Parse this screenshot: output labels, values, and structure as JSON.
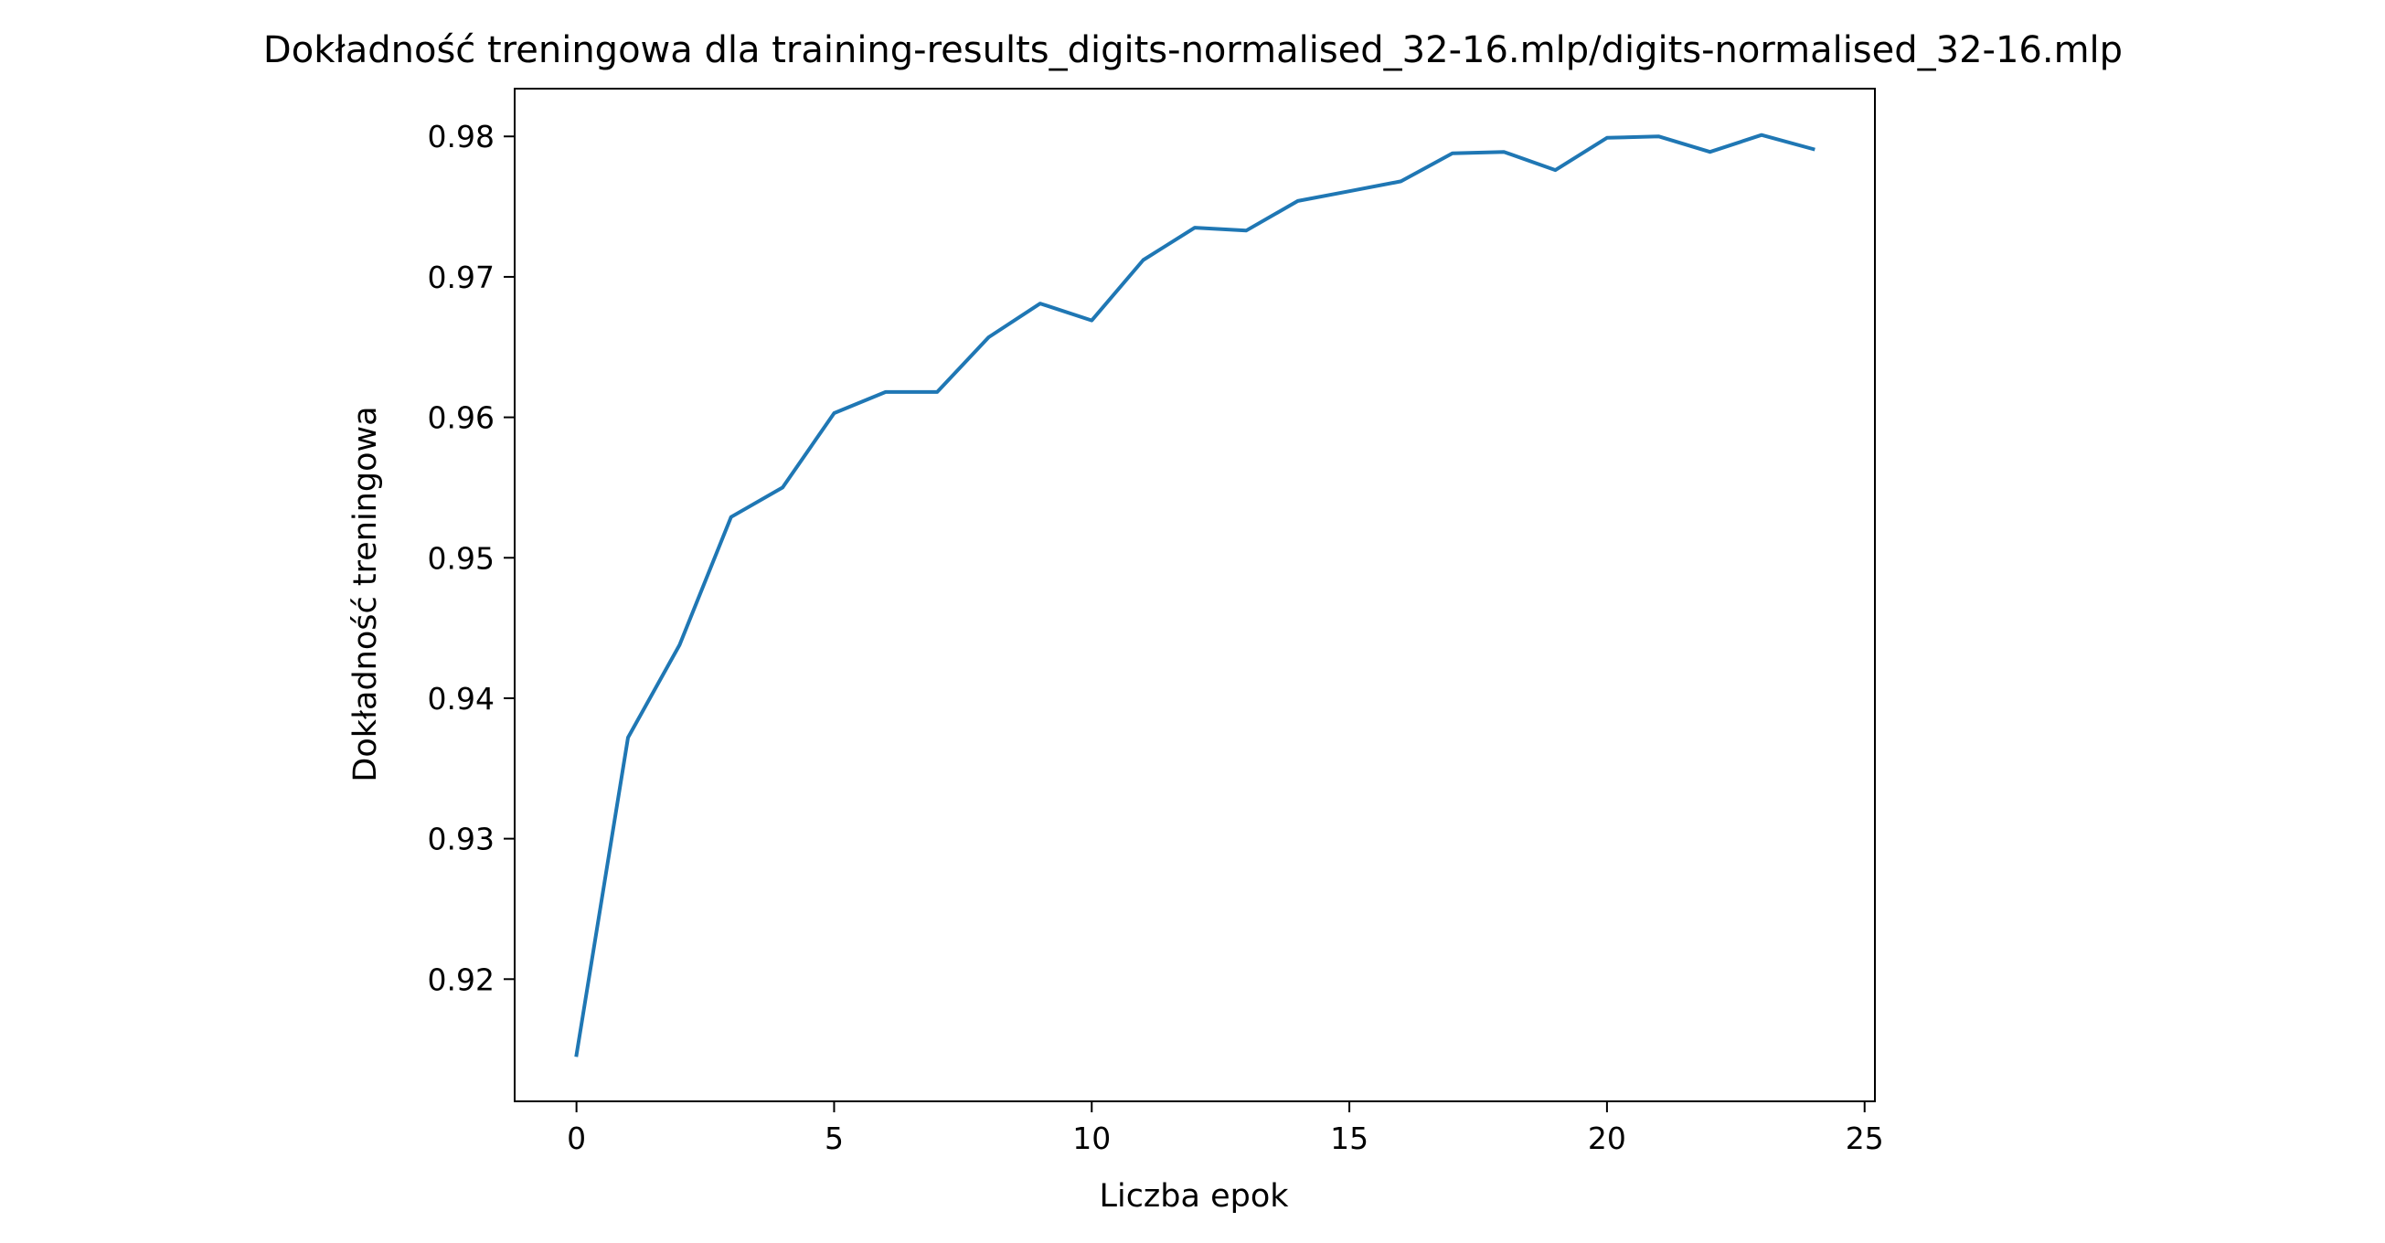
{
  "chart_data": {
    "type": "line",
    "title": "Dokładność treningowa dla training-results_digits-normalised_32-16.mlp/digits-normalised_32-16.mlp",
    "xlabel": "Liczba epok",
    "ylabel": "Dokładność treningowa",
    "xlim": [
      -1.2,
      25.2
    ],
    "ylim": [
      0.9113,
      0.9834
    ],
    "x_ticks": [
      0,
      5,
      10,
      15,
      20,
      25
    ],
    "y_ticks": [
      0.92,
      0.93,
      0.94,
      0.95,
      0.96,
      0.97,
      0.98
    ],
    "x_tick_labels": [
      "0",
      "5",
      "10",
      "15",
      "20",
      "25"
    ],
    "y_tick_labels": [
      "0.92",
      "0.93",
      "0.94",
      "0.95",
      "0.96",
      "0.97",
      "0.98"
    ],
    "grid": false,
    "legend": "none",
    "series": [
      {
        "color": "#1f77b4",
        "x": [
          0,
          1,
          2,
          3,
          4,
          5,
          6,
          7,
          8,
          9,
          10,
          11,
          12,
          13,
          14,
          15,
          16,
          17,
          18,
          19,
          20,
          21,
          22,
          23,
          24
        ],
        "y": [
          0.9146,
          0.9372,
          0.9438,
          0.9529,
          0.955,
          0.9603,
          0.9618,
          0.9618,
          0.9657,
          0.9681,
          0.9669,
          0.9712,
          0.9735,
          0.9733,
          0.9754,
          0.9761,
          0.9768,
          0.9788,
          0.9789,
          0.9776,
          0.9799,
          0.98,
          0.9789,
          0.9801,
          0.9791
        ]
      }
    ]
  }
}
